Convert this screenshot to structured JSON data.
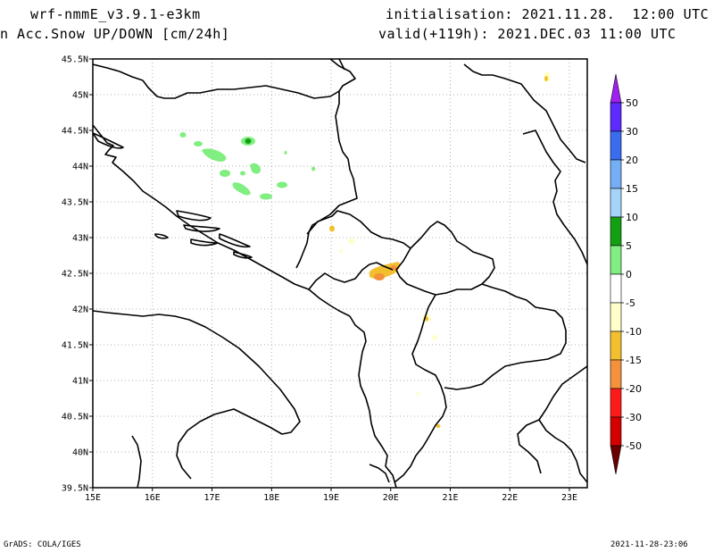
{
  "header": {
    "model": "wrf-nmmE_v3.9.1-e3km",
    "field": "n Acc.Snow UP/DOWN [cm/24h]",
    "init": "initialisation: 2021.11.28.  12:00 UTC",
    "valid": "valid(+119h): 2021.DEC.03 11:00 UTC"
  },
  "footer": {
    "left": "GrADS: COLA/IGES",
    "right": "2021-11-28-23:06"
  },
  "map": {
    "lon_labels": [
      "15E",
      "16E",
      "17E",
      "18E",
      "19E",
      "20E",
      "21E",
      "22E",
      "23E"
    ],
    "lat_labels": [
      "45.5N",
      "45N",
      "44.5N",
      "44N",
      "43.5N",
      "43N",
      "42.5N",
      "42N",
      "41.5N",
      "41N",
      "40.5N",
      "40N",
      "39.5N"
    ]
  },
  "colorbar": {
    "labels": [
      "50",
      "30",
      "20",
      "15",
      "10",
      "5",
      "0",
      "-5",
      "-10",
      "-15",
      "-20",
      "-30",
      "-50"
    ],
    "colors": [
      "#5b2bff",
      "#3a6cf0",
      "#74aef5",
      "#a5d4fa",
      "#12a012",
      "#80ee80",
      "#ffffff",
      "#ffffcc",
      "#f2c02e",
      "#f5913a",
      "#ff1a1a",
      "#d40000",
      "#960000",
      "#7a0000"
    ],
    "top_color": "#a020f0",
    "bottom_color": "#6a0000"
  }
}
